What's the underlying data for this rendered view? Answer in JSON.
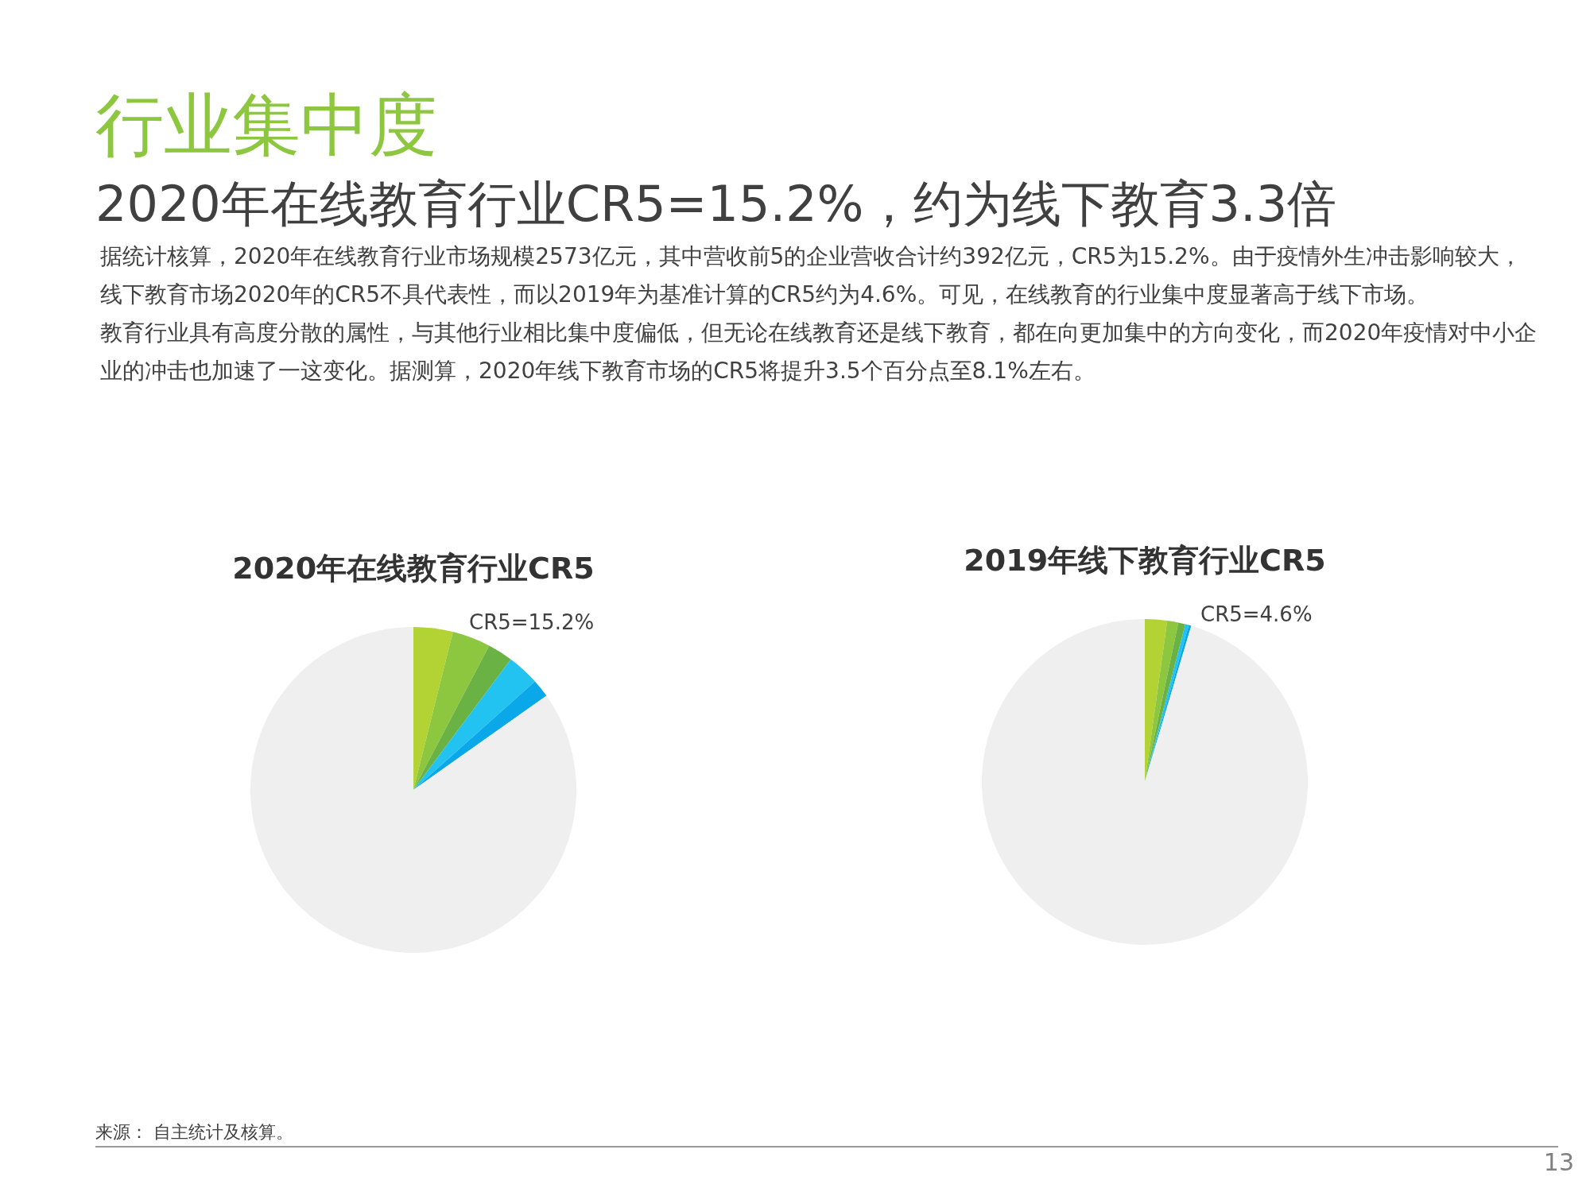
{
  "chart_data": [
    {
      "type": "other",
      "title": "行业集中度",
      "subtitle": "2020年在线教育行业CR5=15.2%，约为线下教育3.3倍",
      "annotations": [
        "据统计核算，2020年在线教育行业市场规模2573亿元，其中营收前5的企业营收合计约392亿元，CR5为15.2%。由于疫情外生冲击影响较大，线下教育市场2020年的CR5不具代表性，而以2019年为基准计算的CR5约为4.6%。可见，在线教育的行业集中度显著高于线下市场。",
        "教育行业具有高度分散的属性，与其他行业相比集中度偏低，但无论在线教育还是线下教育，都在向更加集中的方向变化，而2020年疫情对中小企业的冲击也加速了一这变化。据测算，2020年线下教育市场的CR5将提升3.5个百分点至8.1%左右。",
        "来源： 自主统计及核算。",
        "13"
      ]
    },
    {
      "type": "pie",
      "title": "2020年在线教育行业CR5",
      "categories": [
        null,
        null,
        null,
        null,
        null,
        null
      ],
      "values": [
        3.9,
        3.8,
        2.5,
        3.2,
        1.8,
        84.8
      ],
      "colors": [
        "#b3d234",
        "#8dc63f",
        "#6ab244",
        "#22c3f0",
        "#0aa7e9",
        "#efefef"
      ],
      "annotations": [
        "CR5=15.2%"
      ]
    },
    {
      "type": "pie",
      "title": "2019年线下教育行业CR5",
      "categories": [
        null,
        null,
        null,
        null,
        null,
        null
      ],
      "values": [
        2.2,
        1.1,
        0.7,
        0.35,
        0.25,
        95.4
      ],
      "colors": [
        "#b3d234",
        "#8dc63f",
        "#6ab244",
        "#22c3f0",
        "#0aa7e9",
        "#efefef"
      ],
      "annotations": [
        "CR5=4.6%"
      ]
    }
  ]
}
